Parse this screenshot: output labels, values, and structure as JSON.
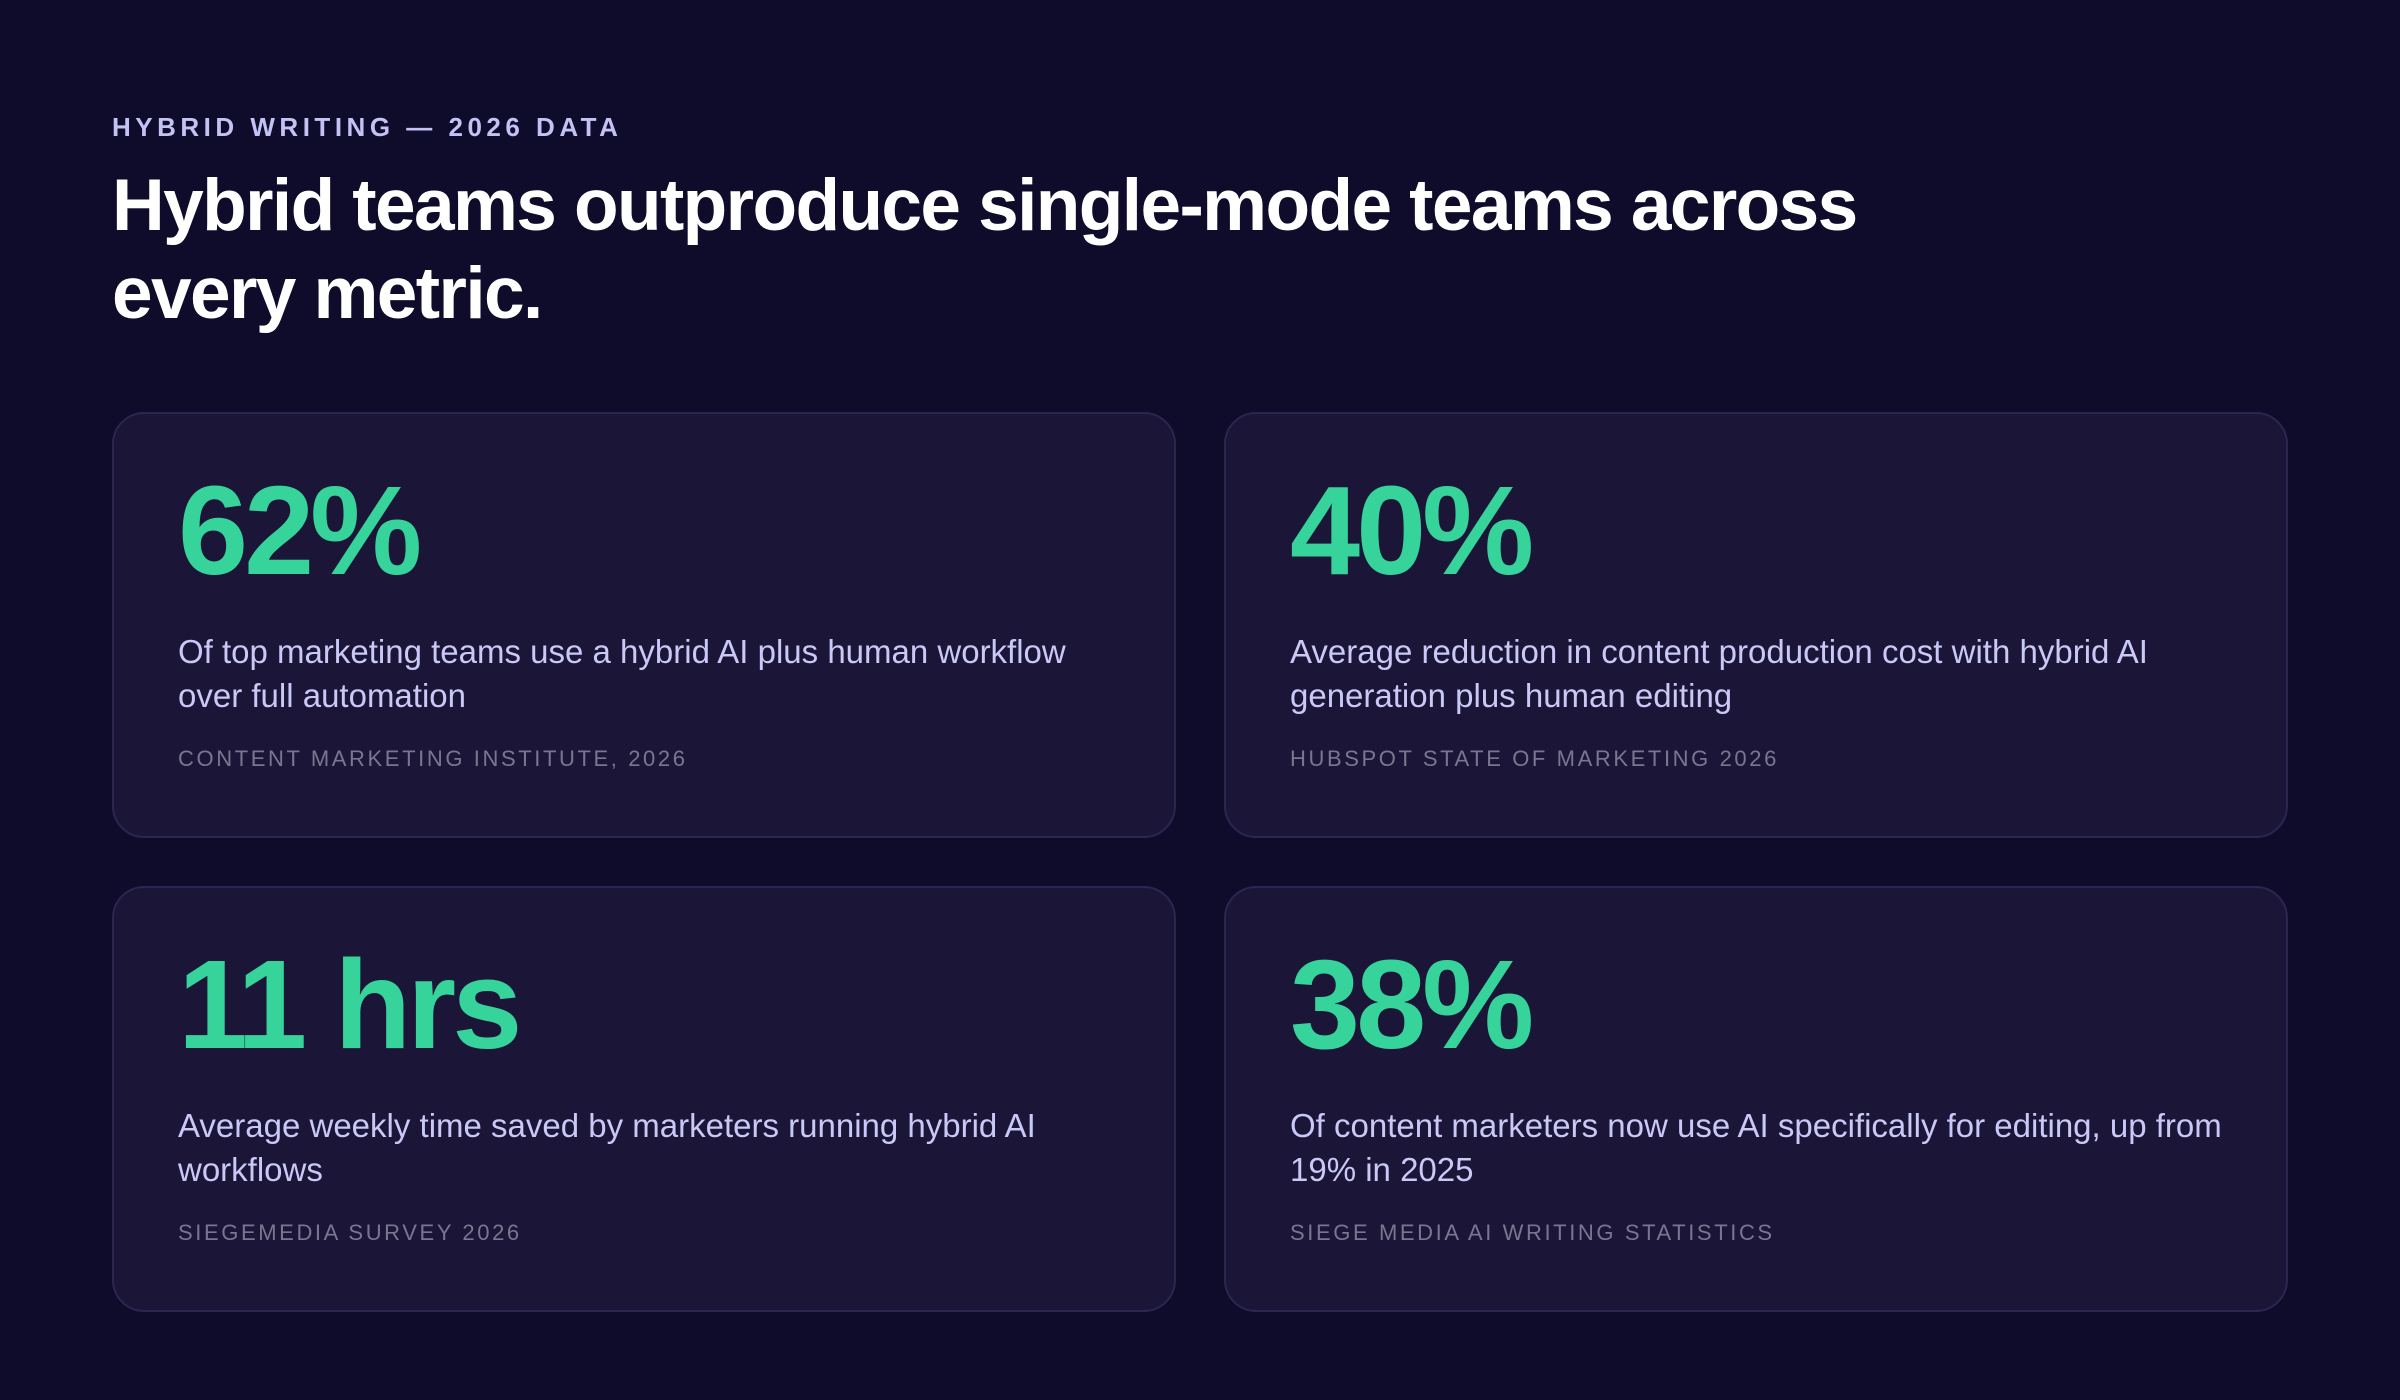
{
  "header": {
    "eyebrow": "HYBRID WRITING — 2026 DATA",
    "headline": "Hybrid teams outproduce single-mode teams across every metric."
  },
  "colors": {
    "background": "#0e0b2b",
    "card": "#1b1637",
    "accent": "#36d39b",
    "text_light": "#c9c8f6",
    "muted": "#7a7690"
  },
  "cards": [
    {
      "stat": "62%",
      "description": "Of top marketing teams use a hybrid AI plus human workflow over full automation",
      "source": "CONTENT MARKETING INSTITUTE, 2026"
    },
    {
      "stat": "40%",
      "description": "Average reduction in content production cost with hybrid AI generation plus human editing",
      "source": "HUBSPOT STATE OF MARKETING 2026"
    },
    {
      "stat": "11 hrs",
      "description": "Average weekly time saved by marketers running hybrid AI workflows",
      "source": "SIEGEMEDIA SURVEY 2026"
    },
    {
      "stat": "38%",
      "description": "Of content marketers now use AI specifically for editing, up from 19% in 2025",
      "source": "SIEGE MEDIA AI WRITING STATISTICS"
    }
  ]
}
